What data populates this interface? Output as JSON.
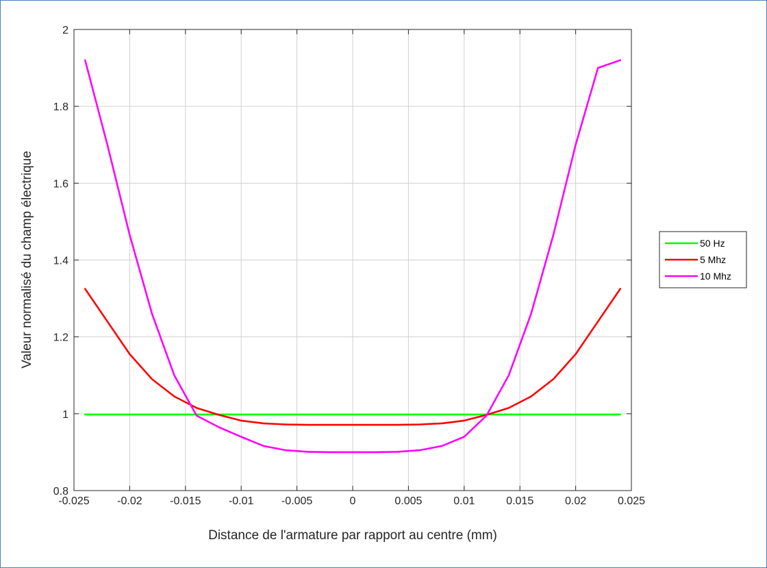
{
  "chart_data": {
    "type": "line",
    "title": "",
    "xlabel": "Distance de l'armature par rapport au centre (mm)",
    "ylabel": "Valeur normalisé du champ électrique",
    "xlim": [
      -0.025,
      0.025
    ],
    "ylim": [
      0.8,
      2
    ],
    "x_ticks": [
      "-0.025",
      "-0.02",
      "-0.015",
      "-0.01",
      "-0.005",
      "0",
      "0.005",
      "0.01",
      "0.015",
      "0.02",
      "0.025"
    ],
    "y_ticks": [
      "0.8",
      "1",
      "1.2",
      "1.4",
      "1.6",
      "1.8",
      "2"
    ],
    "grid": true,
    "legend_position": "outside-right",
    "x": [
      -0.024,
      -0.022,
      -0.02,
      -0.018,
      -0.016,
      -0.014,
      -0.012,
      -0.01,
      -0.008,
      -0.006,
      -0.004,
      -0.002,
      0,
      0.002,
      0.004,
      0.006,
      0.008,
      0.01,
      0.012,
      0.014,
      0.016,
      0.018,
      0.02,
      0.022,
      0.024
    ],
    "series": [
      {
        "name": "50 Hz",
        "color": "#00ff00",
        "values": [
          0.998,
          0.998,
          0.998,
          0.998,
          0.998,
          0.998,
          0.998,
          0.998,
          0.998,
          0.998,
          0.998,
          0.998,
          0.998,
          0.998,
          0.998,
          0.998,
          0.998,
          0.998,
          0.998,
          0.998,
          0.998,
          0.998,
          0.998,
          0.998,
          0.998
        ]
      },
      {
        "name": "5 Mhz",
        "color": "#ff0000",
        "values": [
          1.325,
          1.24,
          1.155,
          1.09,
          1.045,
          1.015,
          0.997,
          0.982,
          0.975,
          0.972,
          0.971,
          0.971,
          0.971,
          0.971,
          0.971,
          0.972,
          0.975,
          0.982,
          0.997,
          1.015,
          1.045,
          1.09,
          1.155,
          1.24,
          1.325
        ]
      },
      {
        "name": "10 Mhz",
        "color": "#ff00ff",
        "values": [
          1.92,
          1.7,
          1.465,
          1.26,
          1.1,
          0.995,
          0.965,
          0.94,
          0.916,
          0.905,
          0.901,
          0.9,
          0.9,
          0.9,
          0.901,
          0.905,
          0.916,
          0.94,
          0.995,
          1.1,
          1.26,
          1.465,
          1.7,
          1.9,
          1.92
        ]
      }
    ]
  }
}
